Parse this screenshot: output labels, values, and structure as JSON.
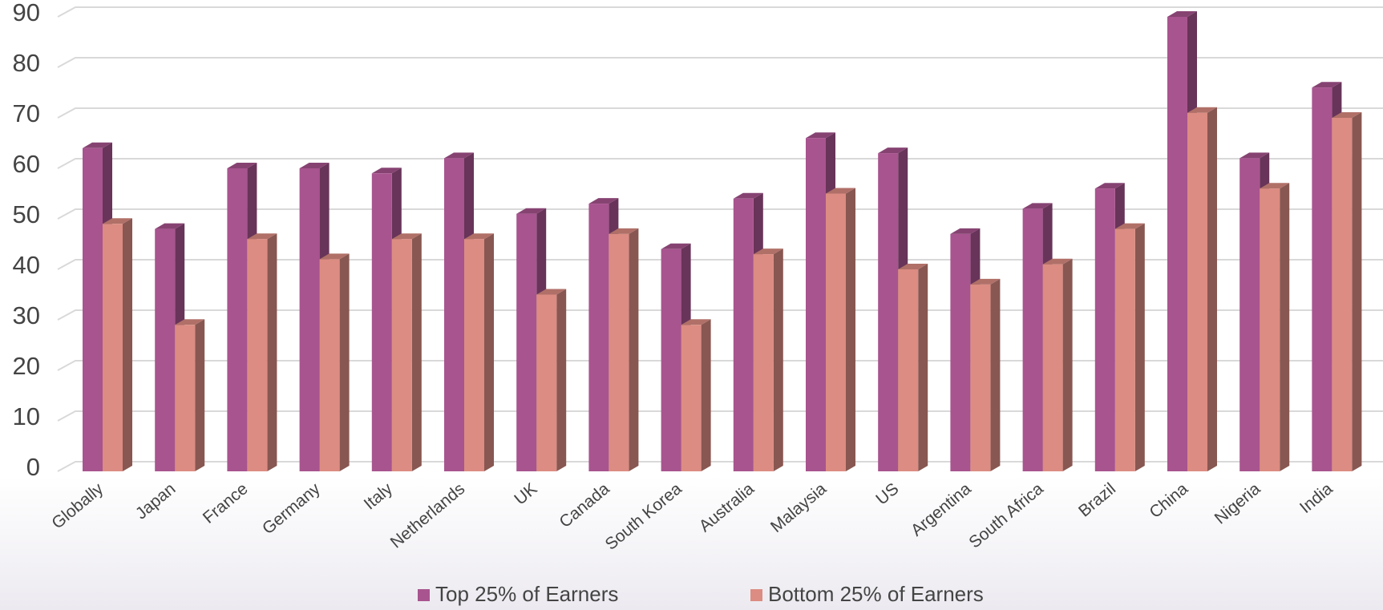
{
  "chart_data": {
    "type": "bar",
    "title": "",
    "xlabel": "",
    "ylabel": "",
    "ylim": [
      0,
      90
    ],
    "yticks": [
      0,
      10,
      20,
      30,
      40,
      50,
      60,
      70,
      80,
      90
    ],
    "grid": true,
    "legend_position": "bottom",
    "style": "3d-clustered-column",
    "categories": [
      "Globally",
      "Japan",
      "France",
      "Germany",
      "Italy",
      "Netherlands",
      "UK",
      "Canada",
      "South Korea",
      "Australia",
      "Malaysia",
      "US",
      "Argentina",
      "South Africa",
      "Brazil",
      "China",
      "Nigeria",
      "India"
    ],
    "series": [
      {
        "name": "Top 25% of Earners",
        "color": "#a8548f",
        "values": [
          64,
          48,
          60,
          60,
          59,
          62,
          51,
          53,
          44,
          54,
          66,
          63,
          47,
          52,
          56,
          90,
          62,
          76
        ]
      },
      {
        "name": "Bottom 25% of Earners",
        "color": "#dc8c82",
        "values": [
          49,
          29,
          46,
          42,
          46,
          46,
          35,
          47,
          29,
          43,
          55,
          40,
          37,
          41,
          48,
          71,
          56,
          70
        ]
      }
    ]
  }
}
